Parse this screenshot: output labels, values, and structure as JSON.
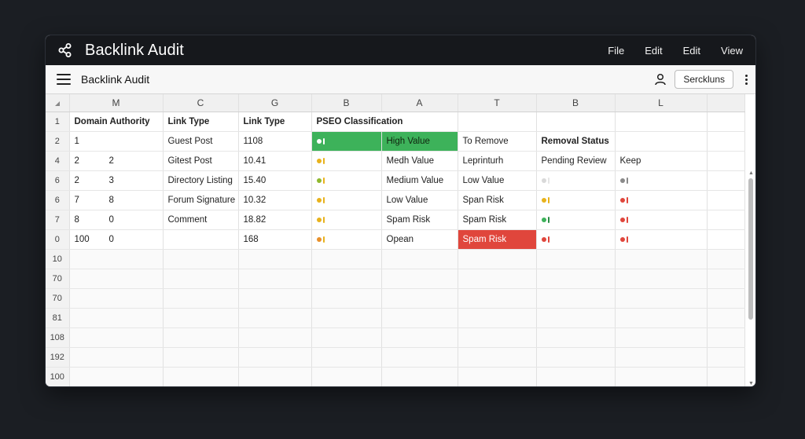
{
  "window": {
    "title": "Backlink Audit"
  },
  "menu": [
    "File",
    "Edit",
    "Edit",
    "View"
  ],
  "toolbar": {
    "doc_title": "Backlink Audit",
    "search_label": "Serckluns"
  },
  "columns": [
    "M",
    "C",
    "G",
    "B",
    "A",
    "T",
    "B",
    "L"
  ],
  "header_row": {
    "num": "1",
    "c1": "Domain Authority",
    "c2": "Link Type",
    "c3": "Link Type",
    "c4": "PSEO Classification"
  },
  "rows": [
    {
      "num": "2",
      "a": "1",
      "b": "",
      "link": "Guest Post",
      "val": "1108",
      "dot": "#ffffff",
      "bar": "#ffffff",
      "class": "High Value",
      "action": "To Remove",
      "status": "Removal Status",
      "keep": ""
    },
    {
      "num": "4",
      "a": "2",
      "b": "2",
      "link": "Gitest Post",
      "val": "10.41",
      "dot": "#e8b21c",
      "bar": "#e8b21c",
      "class": "Medh Value",
      "action": "Leprinturh",
      "status": "Pending Review",
      "keep": "Keep"
    },
    {
      "num": "6",
      "a": "2",
      "b": "3",
      "link": "Directory Listing",
      "val": "15.40",
      "dot": "#8fb82e",
      "bar": "#e8b21c",
      "class": "Medium Value",
      "action": "Low Value",
      "status": "",
      "keep": ""
    },
    {
      "num": "6",
      "a": "7",
      "b": "8",
      "link": "Forum Signature",
      "val": "10.32",
      "dot": "#e8b21c",
      "bar": "#e8b21c",
      "class": "Low Value",
      "action": "Span Risk",
      "status": "",
      "keep": ""
    },
    {
      "num": "7",
      "a": "8",
      "b": "0",
      "link": "Comment",
      "val": "18.82",
      "dot": "#e8b21c",
      "bar": "#e8b21c",
      "class": "Spam Risk",
      "action": "Spam Risk",
      "status": "",
      "keep": ""
    },
    {
      "num": "0",
      "a": "100",
      "b": "0",
      "link": "",
      "val": "168",
      "dot": "#e8902a",
      "bar": "#e8b21c",
      "class": "Opean",
      "action": "Spam Risk",
      "status": "",
      "keep": ""
    }
  ],
  "status_marks": [
    {
      "dot": "",
      "bar": ""
    },
    {
      "dot": "",
      "bar": ""
    },
    {
      "dot": "#d9d9d9",
      "bar": "#e5e5e5"
    },
    {
      "dot": "#e8b21c",
      "bar": "#e8b21c"
    },
    {
      "dot": "#3db25a",
      "bar": "#2c8c46"
    },
    {
      "dot": "#e0463c",
      "bar": "#e0463c"
    }
  ],
  "keep_marks": [
    {
      "dot": "",
      "bar": ""
    },
    {
      "dot": "",
      "bar": ""
    },
    {
      "dot": "#8a8a8a",
      "bar": "#8a8a8a"
    },
    {
      "dot": "#e0463c",
      "bar": "#e0463c"
    },
    {
      "dot": "#e0463c",
      "bar": "#e0463c"
    },
    {
      "dot": "#e0463c",
      "bar": "#e0463c"
    }
  ],
  "empty_rows": [
    "10",
    "70",
    "70",
    "81",
    "108",
    "192",
    "100"
  ],
  "colors": {
    "green": "#3db25a",
    "red": "#e0463c",
    "titlebar": "#16181c"
  }
}
